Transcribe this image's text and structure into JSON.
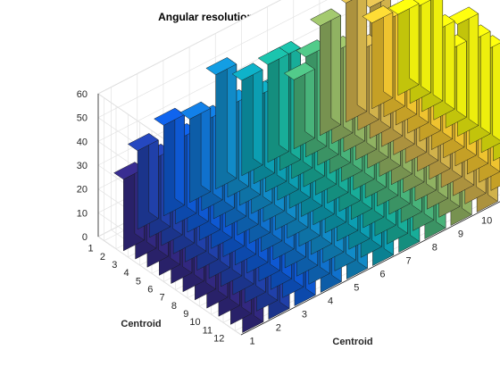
{
  "chart_data": {
    "type": "bar3",
    "title": "Angular resolution =   1.1719e-02 deg",
    "xlabel": "Centroid",
    "ylabel": "Centroid",
    "x_ticks": [
      "1",
      "2",
      "3",
      "4",
      "5",
      "6",
      "7",
      "8",
      "9",
      "10",
      "11",
      "12"
    ],
    "y_ticks": [
      "1",
      "2",
      "3",
      "4",
      "5",
      "6",
      "7",
      "8",
      "9",
      "10",
      "11",
      "12"
    ],
    "z_ticks": [
      "0",
      "10",
      "20",
      "30",
      "40",
      "50",
      "60"
    ],
    "zlim": [
      0,
      60
    ],
    "grid": true,
    "colormap": "parula",
    "matrix": [
      [
        0,
        33,
        38,
        35,
        48,
        40,
        41,
        29,
        46,
        50,
        36,
        34
      ],
      [
        30,
        32,
        35,
        37,
        38,
        36,
        47,
        42,
        38,
        33,
        40,
        39
      ],
      [
        32,
        34,
        36,
        35,
        31,
        42,
        37,
        44,
        36,
        55,
        35,
        46
      ],
      [
        30,
        28,
        30,
        26,
        26,
        32,
        36,
        41,
        29,
        31,
        50,
        37
      ],
      [
        33,
        31,
        28,
        38,
        27,
        29,
        27,
        39,
        37,
        44,
        36,
        32
      ],
      [
        22,
        25,
        23,
        20,
        26,
        26,
        30,
        30,
        35,
        41,
        40,
        47
      ],
      [
        24,
        21,
        23,
        26,
        31,
        25,
        33,
        29,
        37,
        36,
        38,
        43
      ],
      [
        22,
        24,
        19,
        20,
        27,
        20,
        28,
        33,
        31,
        46,
        34,
        42
      ],
      [
        24,
        21,
        20,
        21,
        26,
        21,
        33,
        28,
        35,
        39,
        45,
        38
      ],
      [
        24,
        19,
        22,
        20,
        26,
        21,
        34,
        39,
        31,
        36,
        40,
        33
      ],
      [
        21,
        22,
        20,
        20,
        29,
        21,
        28,
        37,
        41,
        29,
        33,
        43
      ],
      [
        24,
        20,
        18,
        17,
        31,
        28,
        26,
        29,
        32,
        30,
        36,
        40
      ]
    ]
  }
}
